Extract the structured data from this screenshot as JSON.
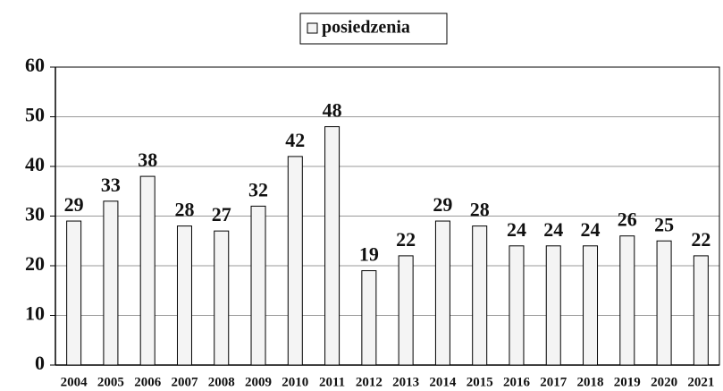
{
  "chart_data": {
    "type": "bar",
    "categories": [
      "2004",
      "2005",
      "2006",
      "2007",
      "2008",
      "2009",
      "2010",
      "2011",
      "2012",
      "2013",
      "2014",
      "2015",
      "2016",
      "2017",
      "2018",
      "2019",
      "2020",
      "2021"
    ],
    "series": [
      {
        "name": "posiedzenia",
        "color": "#f4f4f4",
        "values": [
          29,
          33,
          38,
          28,
          27,
          32,
          42,
          48,
          19,
          22,
          29,
          28,
          24,
          24,
          24,
          26,
          25,
          22
        ]
      }
    ],
    "ylim": [
      0,
      60
    ],
    "yticks": [
      0,
      10,
      20,
      30,
      40,
      50,
      60
    ],
    "grid": true,
    "legend": "top"
  }
}
